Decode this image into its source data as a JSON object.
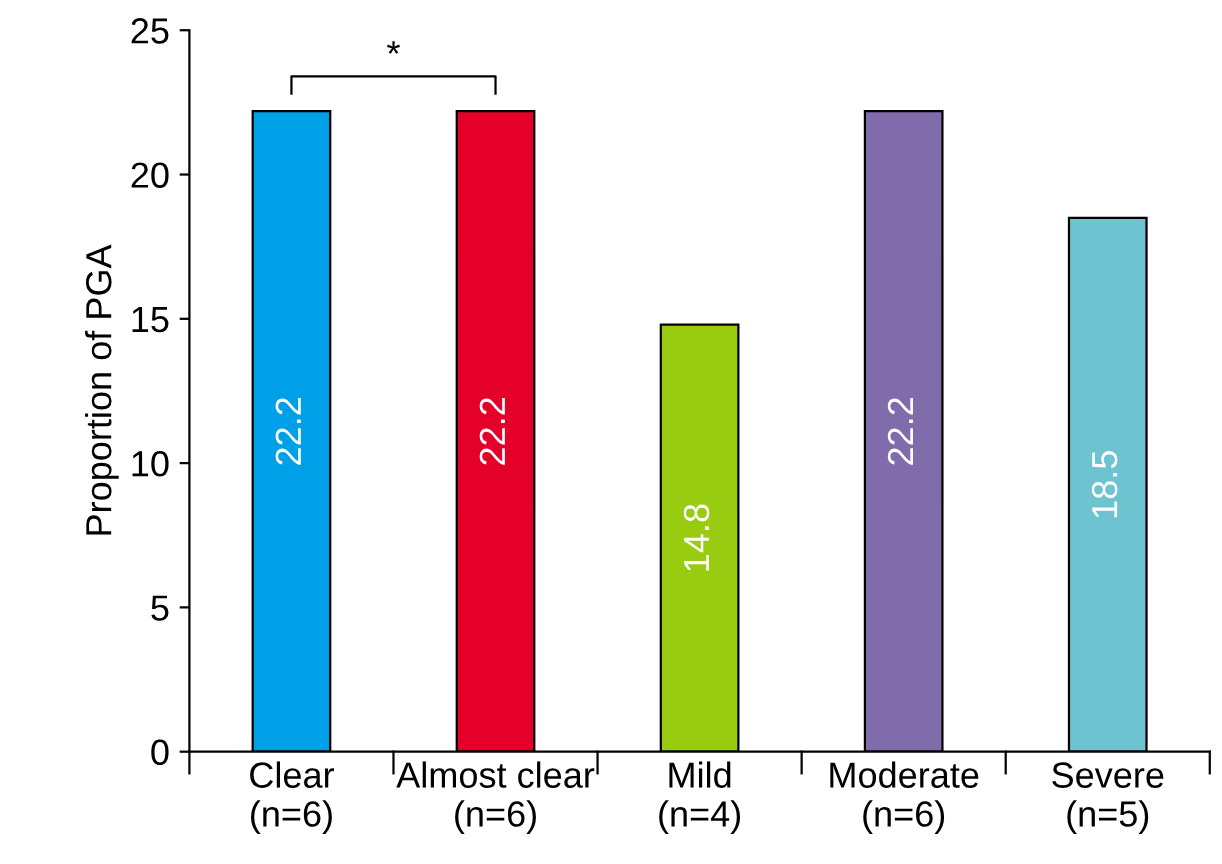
{
  "chart_data": {
    "type": "bar",
    "ylabel": "Proportion of PGA",
    "categories": [
      "Clear\n(n=6)",
      "Almost clear\n(n=6)",
      "Mild\n(n=4)",
      "Moderate\n(n=6)",
      "Severe\n(n=5)"
    ],
    "values": [
      22.2,
      22.2,
      14.8,
      22.2,
      18.5
    ],
    "colors": [
      "#00a0e9",
      "#e5002a",
      "#99cc11",
      "#806caa",
      "#6ec3d0"
    ],
    "ylim": [
      0,
      25
    ],
    "yticks": [
      0,
      5,
      10,
      15,
      20,
      25
    ],
    "grid": false,
    "legend": false,
    "data_labels": true,
    "annotations": [
      "*"
    ]
  }
}
